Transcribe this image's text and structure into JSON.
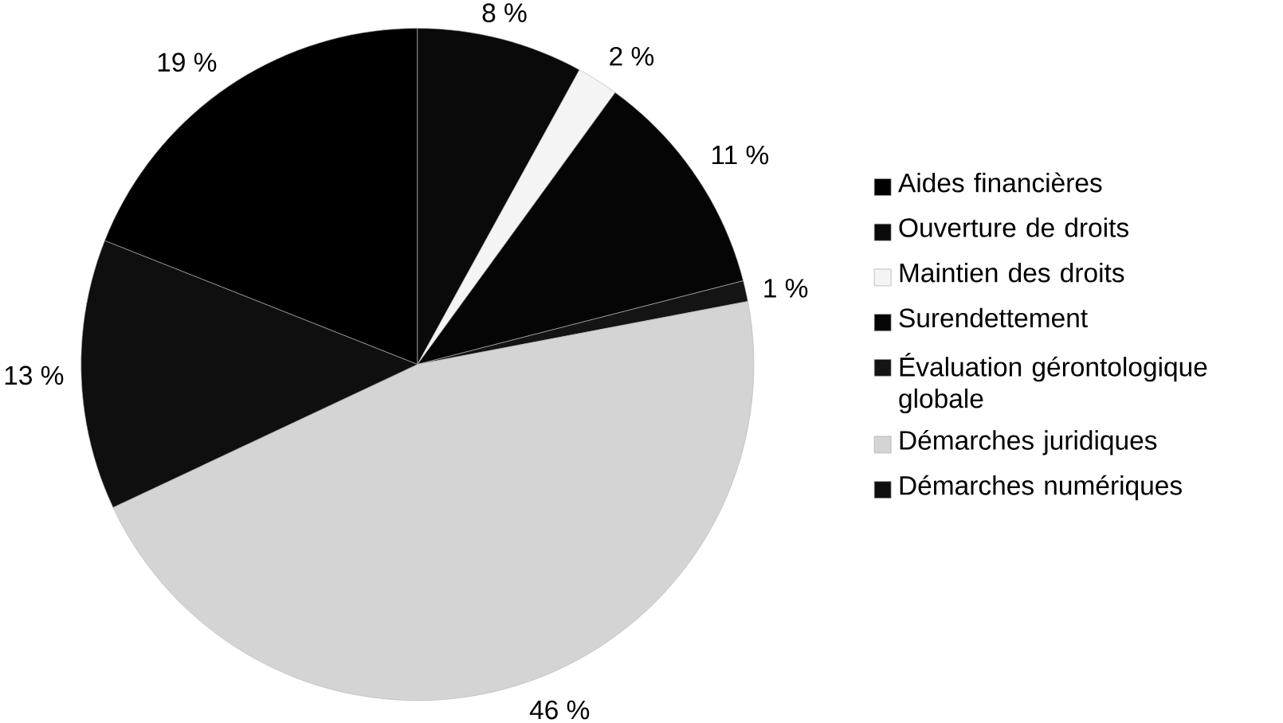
{
  "chart_data": {
    "type": "pie",
    "categories": [
      "Aides financières",
      "Ouverture de droits",
      "Maintien des droits",
      "Surendettement",
      "Évaluation gérontologique globale",
      "Démarches juridiques",
      "Démarches numériques"
    ],
    "values": [
      19,
      8,
      2,
      11,
      1,
      46,
      13
    ],
    "value_labels": [
      "19 %",
      "8 %",
      "2 %",
      "11 %",
      "1 %",
      "46 %",
      "13 %"
    ],
    "colors": [
      "#000000",
      "#0a0a0a",
      "#f4f4f4",
      "#050505",
      "#141414",
      "#d4d4d4",
      "#0f0f0f"
    ],
    "legend": "right"
  }
}
